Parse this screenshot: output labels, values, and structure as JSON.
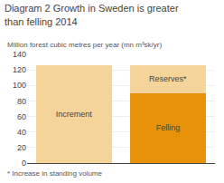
{
  "chart_data": {
    "type": "bar",
    "title": "Diagram 2 Growth in Sweden is greater than felling 2014",
    "ylabel": "Million forest cubic metres per year (mn m³sk/yr)",
    "annotations": [
      "* Increase in standing volume"
    ],
    "categories": [
      null,
      null
    ],
    "series": [
      {
        "name": "Increment",
        "color": "#F5D49A",
        "values": [
          126,
          null
        ]
      },
      {
        "name": "Felling",
        "color": "#E8920A",
        "values": [
          null,
          90
        ]
      },
      {
        "name": "Reserves*",
        "color": "#F5D49A",
        "values": [
          null,
          36
        ]
      }
    ],
    "stacked": true,
    "ylim": [
      0,
      140
    ],
    "yticks": [
      0,
      20,
      40,
      60,
      80,
      100,
      120,
      140
    ],
    "grid": true,
    "tick_labels": "y"
  }
}
